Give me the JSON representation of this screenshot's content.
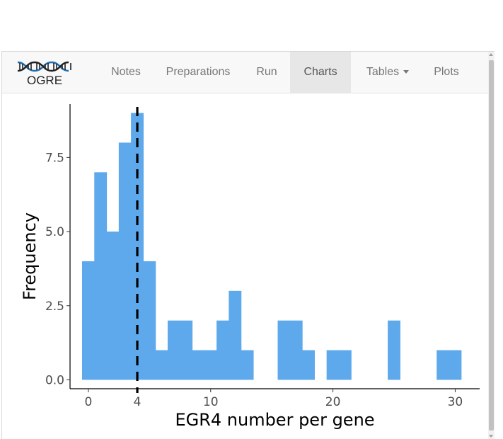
{
  "app": {
    "brand_label": "OGRE",
    "brand_icon": "dna-icon"
  },
  "nav": {
    "items": [
      {
        "label": "Notes"
      },
      {
        "label": "Preparations"
      },
      {
        "label": "Run"
      },
      {
        "label": "Charts",
        "active": true
      },
      {
        "label": "Tables",
        "dropdown": true
      },
      {
        "label": "Plots"
      }
    ]
  },
  "colors": {
    "bar": "#5ea8ec",
    "active_tab": "#e7e7e7",
    "navbar": "#f8f8f8"
  },
  "chart_data": {
    "type": "bar",
    "xlabel": "EGR4 number per gene",
    "ylabel": "Frequency",
    "xlim": [
      -1.5,
      32
    ],
    "ylim": [
      -0.3,
      9.3
    ],
    "x_ticks": [
      0,
      4,
      10,
      20,
      30
    ],
    "x_tick_labels": [
      "0",
      "4",
      "10",
      "20",
      "30"
    ],
    "y_ticks": [
      0,
      2.5,
      5,
      7.5
    ],
    "y_tick_labels": [
      "0.0",
      "2.5",
      "5.0",
      "7.5"
    ],
    "bin_width": 1.0345,
    "bins_x": [
      0,
      1,
      2,
      3,
      4,
      5,
      6,
      7,
      8,
      9,
      10,
      11,
      12,
      13,
      14,
      15,
      16,
      17,
      18,
      19,
      20,
      21,
      22,
      23,
      24,
      25,
      26,
      27,
      28,
      29,
      30
    ],
    "values": [
      4,
      7,
      5,
      8,
      9,
      4,
      1,
      2,
      2,
      1,
      1,
      2,
      3,
      1,
      0,
      0,
      2,
      2,
      1,
      0,
      1,
      1,
      0,
      0,
      0,
      2,
      0,
      0,
      0,
      1,
      1
    ],
    "reference_line": {
      "x": 4,
      "style": "dashed"
    },
    "grid": false,
    "legend": "none"
  }
}
